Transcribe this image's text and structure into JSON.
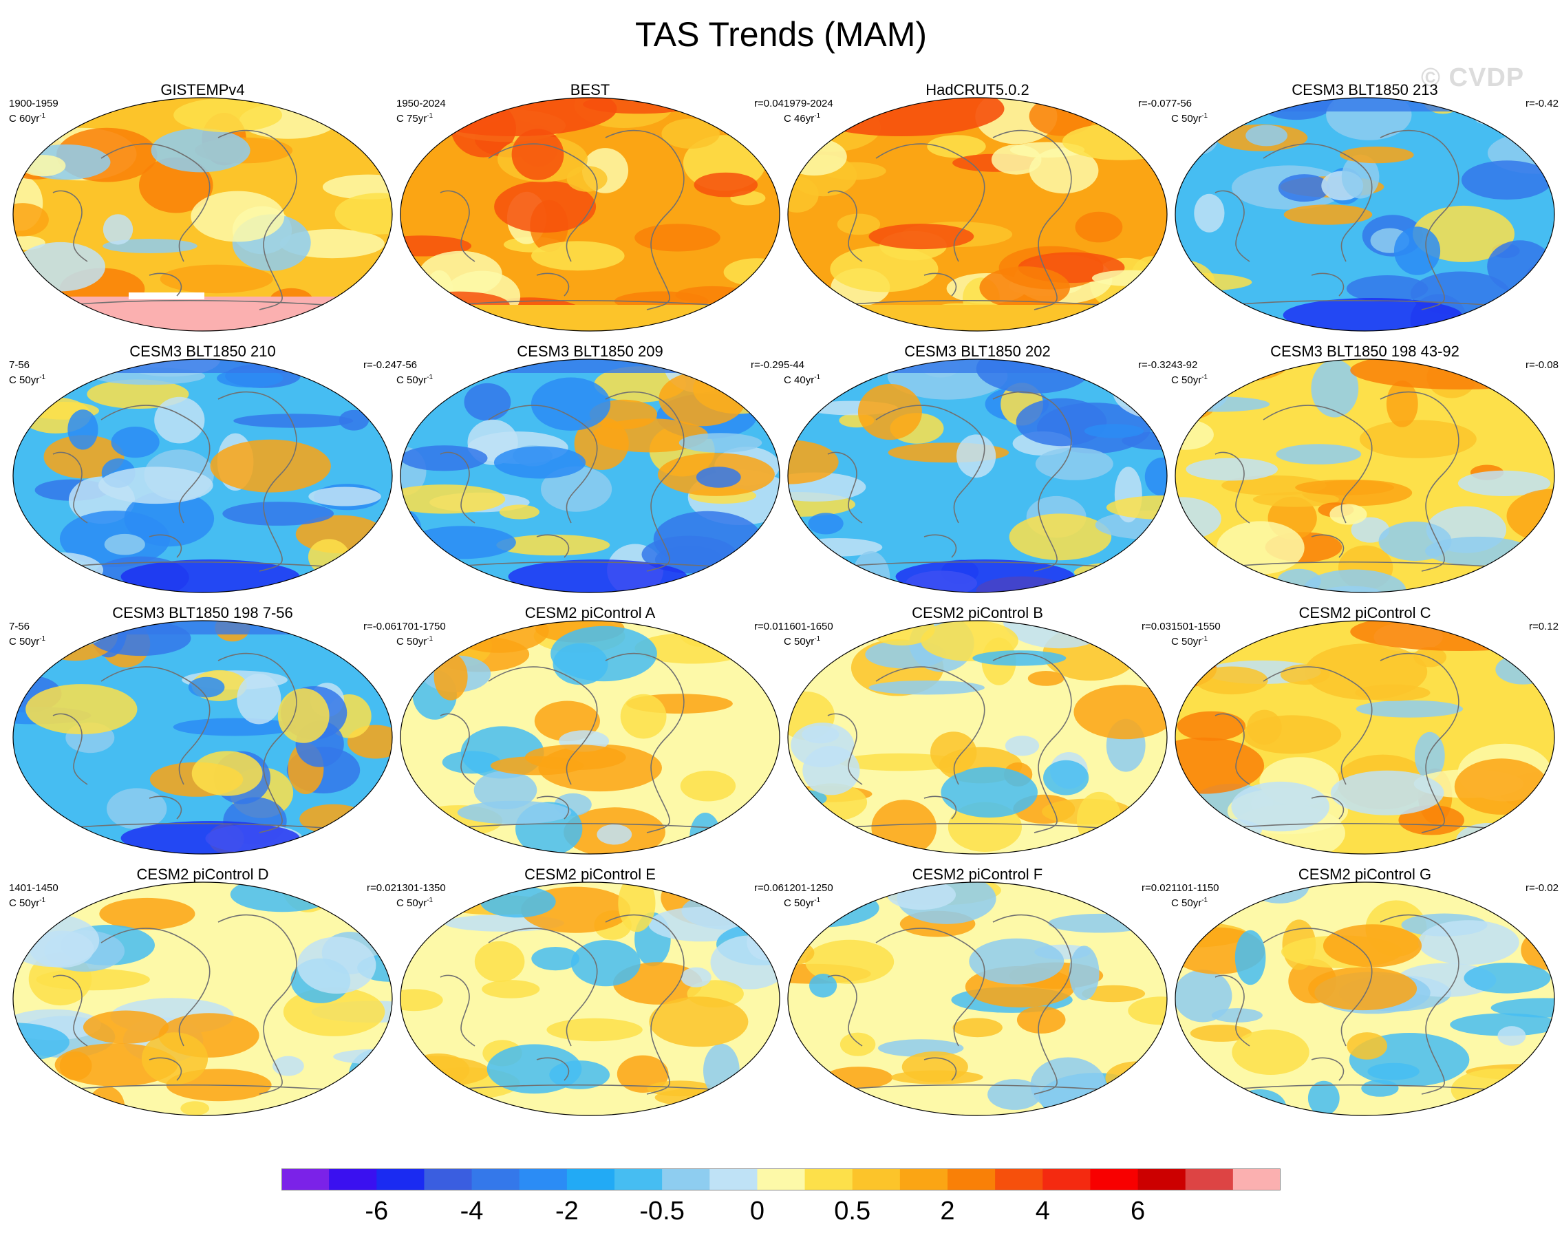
{
  "title": "TAS Trends (MAM)",
  "watermark": "© CVDP",
  "units_prefix": "C",
  "units_suffix": "yr",
  "units_exp": "-1",
  "panels": [
    {
      "title": "GISTEMPv4",
      "period": "1900-1959",
      "scale": "60",
      "r": "",
      "pattern": "obs_gistemp"
    },
    {
      "title": "BEST",
      "period": "1950-2024",
      "scale": "75",
      "r": "r=0.04",
      "pattern": "obs_warm"
    },
    {
      "title": "HadCRUT5.0.2",
      "period": "1979-2024",
      "scale": "46",
      "r": "r=-0.07",
      "pattern": "obs_warm"
    },
    {
      "title": "CESM3 BLT1850 213",
      "period": "7-56",
      "scale": "50",
      "r": "r=-0.42",
      "pattern": "cold"
    },
    {
      "title": "CESM3 BLT1850 210",
      "period": "7-56",
      "scale": "50",
      "r": "r=-0.24",
      "pattern": "cold"
    },
    {
      "title": "CESM3 BLT1850 209",
      "period": "7-56",
      "scale": "50",
      "r": "r=-0.29",
      "pattern": "cold"
    },
    {
      "title": "CESM3 BLT1850 202",
      "period": "5-44",
      "scale": "40",
      "r": "r=-0.32",
      "pattern": "cold"
    },
    {
      "title": "CESM3 BLT1850 198 43-92",
      "period": "43-92",
      "scale": "50",
      "r": "r=-0.08",
      "pattern": "mild_warm"
    },
    {
      "title": "CESM3 BLT1850 198 7-56",
      "period": "7-56",
      "scale": "50",
      "r": "r=-0.06",
      "pattern": "cold"
    },
    {
      "title": "CESM2 piControl A",
      "period": "1701-1750",
      "scale": "50",
      "r": "r=0.01",
      "pattern": "mixed"
    },
    {
      "title": "CESM2 piControl B",
      "period": "1601-1650",
      "scale": "50",
      "r": "r=0.03",
      "pattern": "mixed"
    },
    {
      "title": "CESM2 piControl C",
      "period": "1501-1550",
      "scale": "50",
      "r": "r=0.12",
      "pattern": "mild_warm"
    },
    {
      "title": "CESM2 piControl D",
      "period": "1401-1450",
      "scale": "50",
      "r": "r=0.02",
      "pattern": "mixed"
    },
    {
      "title": "CESM2 piControl E",
      "period": "1301-1350",
      "scale": "50",
      "r": "r=0.06",
      "pattern": "mixed"
    },
    {
      "title": "CESM2 piControl F",
      "period": "1201-1250",
      "scale": "50",
      "r": "r=0.02",
      "pattern": "mixed"
    },
    {
      "title": "CESM2 piControl G",
      "period": "1101-1150",
      "scale": "50",
      "r": "r=-0.02",
      "pattern": "mixed"
    }
  ],
  "colorbar": {
    "colors": [
      "#7b22e8",
      "#3a10f0",
      "#1a2bf2",
      "#3a5ee0",
      "#3478ea",
      "#2b8cf5",
      "#22aaf5",
      "#46bdf2",
      "#8ecdf0",
      "#bfe2f6",
      "#fdf9a8",
      "#fde04a",
      "#fcc42a",
      "#fba514",
      "#f98007",
      "#f6500c",
      "#f42a10",
      "#f80000",
      "#cc0000",
      "#dd4444",
      "#fbb0b0"
    ],
    "labels": [
      "-6",
      "-4",
      "-2",
      "-0.5",
      "0",
      "0.5",
      "2",
      "4",
      "6"
    ],
    "label_boundaries": [
      2,
      4,
      6,
      8,
      10,
      12,
      14,
      16,
      18
    ]
  }
}
